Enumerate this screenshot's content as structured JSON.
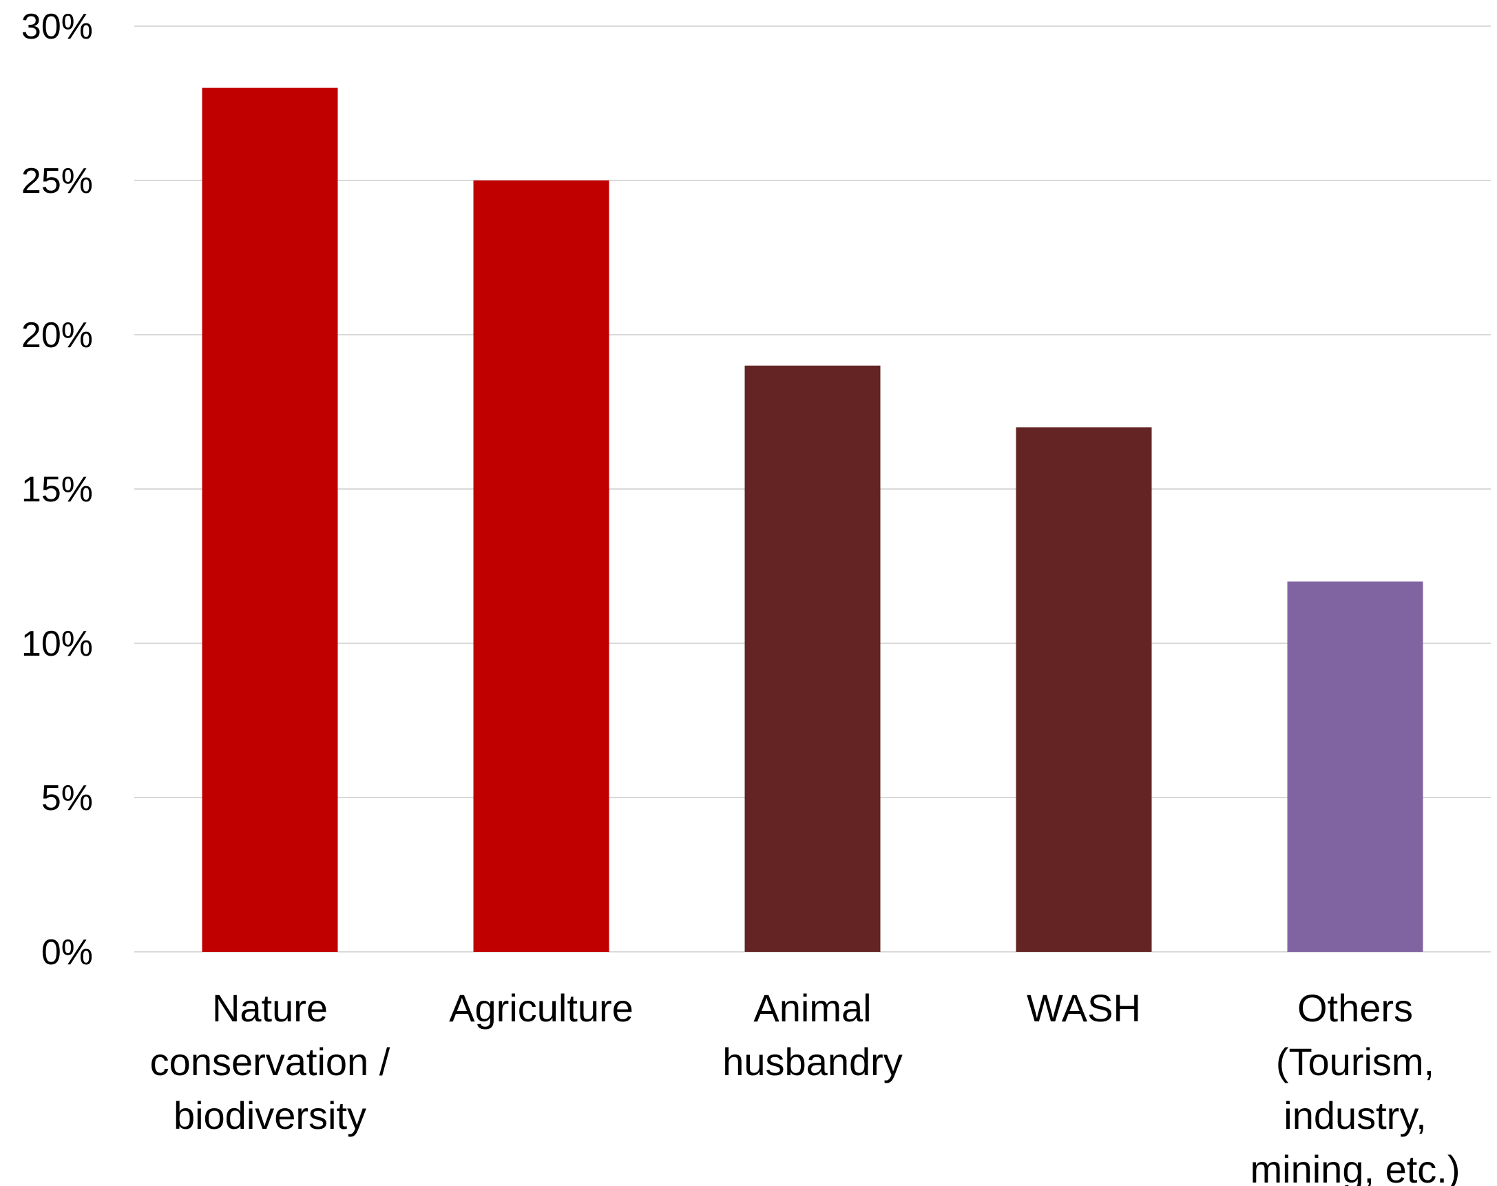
{
  "chart_data": {
    "type": "bar",
    "title": "",
    "xlabel": "",
    "ylabel": "",
    "ylim": [
      0,
      30
    ],
    "y_ticks": [
      0,
      5,
      10,
      15,
      20,
      25,
      30
    ],
    "y_tick_format": "percent",
    "grid": true,
    "legend": "none",
    "categories": [
      [
        "Nature",
        "conservation /",
        "biodiversity"
      ],
      [
        "Agriculture"
      ],
      [
        "Animal",
        "husbandry"
      ],
      [
        "WASH"
      ],
      [
        "Others",
        "(Tourism,",
        "industry,",
        "mining, etc.)"
      ]
    ],
    "values": [
      28,
      25,
      19,
      17,
      12
    ],
    "bar_colors": [
      "#c00000",
      "#c00000",
      "#632423",
      "#632423",
      "#8064a2"
    ]
  }
}
